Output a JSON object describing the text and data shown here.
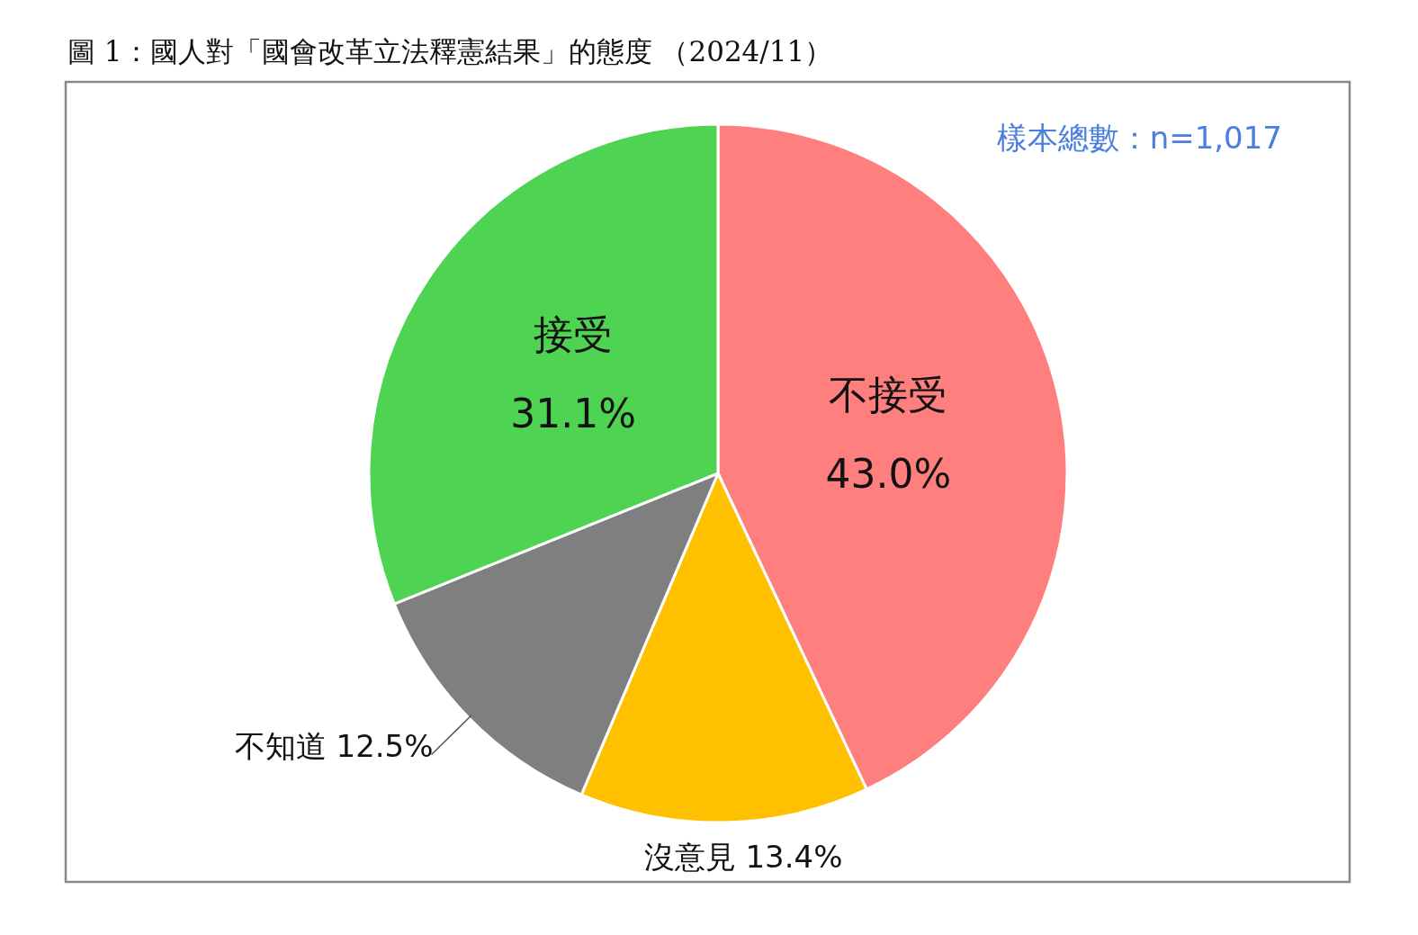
{
  "chart_data": {
    "type": "pie",
    "title": "圖 1：國人對「國會改革立法釋憲結果」的態度 （2024/11）",
    "categories": [
      "不接受",
      "沒意見",
      "不知道",
      "接受"
    ],
    "values": [
      43.0,
      13.4,
      12.5,
      31.1
    ],
    "value_labels": [
      "43.0%",
      "13.4%",
      "12.5%",
      "31.1%"
    ],
    "colors": [
      "#ff7f7f",
      "#ffc000",
      "#7f7f7f",
      "#4fd352"
    ],
    "annotations": [
      "樣本總數：n=1,017"
    ]
  }
}
